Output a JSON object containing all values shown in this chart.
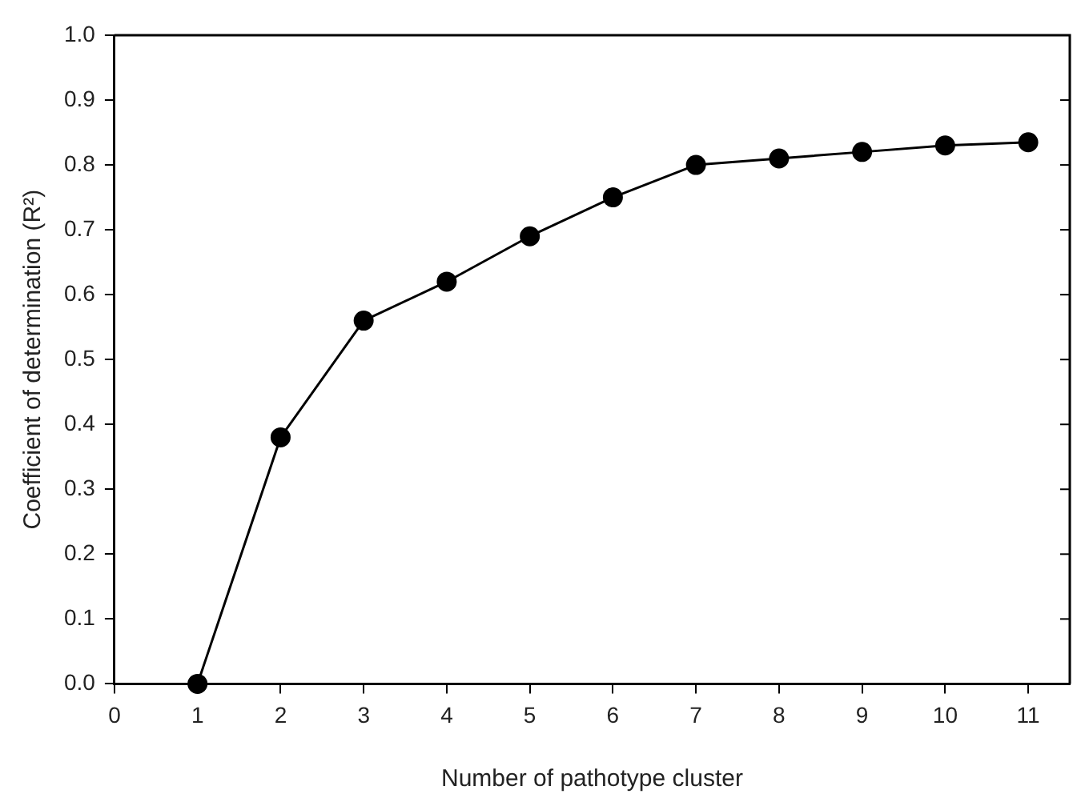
{
  "chart_data": {
    "type": "line",
    "xlabel": "Number of pathotype cluster",
    "ylabel": "Coefficient of determination (R²)",
    "x": [
      1,
      2,
      3,
      4,
      5,
      6,
      7,
      8,
      9,
      10,
      11
    ],
    "series": [
      {
        "color": "#000000",
        "values": [
          0,
          0.38,
          0.56,
          0.62,
          0.69,
          0.75,
          0.8,
          0.81,
          0.82,
          0.83,
          0.835
        ]
      }
    ],
    "xlim": [
      0,
      11.5
    ],
    "xticks": [
      0,
      1,
      2,
      3,
      4,
      5,
      6,
      7,
      8,
      9,
      10,
      11
    ],
    "ylim": [
      0,
      1
    ],
    "yticks": [
      {
        "value": 0,
        "label": "0.0"
      },
      0.1,
      0.2,
      0.3,
      0.4,
      0.5,
      0.6,
      0.7,
      0.8,
      0.9,
      {
        "value": 1,
        "label": "1.0"
      }
    ],
    "grid": false,
    "legend": false,
    "marker": "circle",
    "line_style": "solid"
  }
}
